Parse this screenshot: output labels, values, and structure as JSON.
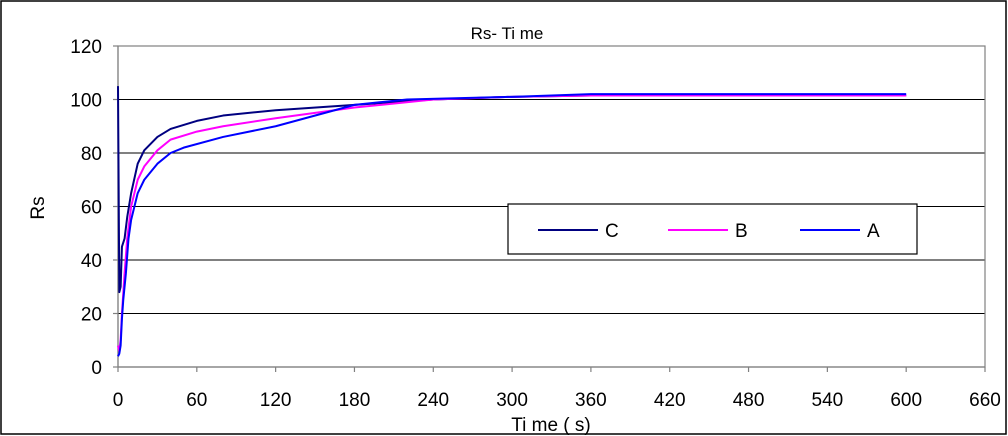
{
  "chart_data": {
    "type": "line",
    "title": "Rs- Ti me",
    "xlabel": "Ti me ( s)",
    "ylabel": "Rs",
    "xlim": [
      0,
      660
    ],
    "ylim": [
      0,
      120
    ],
    "xticks": [
      0,
      60,
      120,
      180,
      240,
      300,
      360,
      420,
      480,
      540,
      600,
      660
    ],
    "yticks": [
      0,
      20,
      40,
      60,
      80,
      100,
      120
    ],
    "grid": "horizontal",
    "legend_position": "center-right",
    "series": [
      {
        "name": "C",
        "color": "#000080",
        "x": [
          0,
          1,
          2,
          3,
          5,
          7,
          10,
          15,
          20,
          30,
          40,
          60,
          80,
          120,
          180,
          240,
          300,
          360,
          420,
          480,
          540,
          600
        ],
        "y": [
          105,
          28,
          30,
          45,
          48,
          56,
          65,
          76,
          81,
          86,
          89,
          92,
          94,
          96,
          98,
          100,
          101,
          101.5,
          101.5,
          101.5,
          101.5,
          101.5
        ]
      },
      {
        "name": "B",
        "color": "#FF00FF",
        "x": [
          0,
          1,
          2,
          3,
          5,
          7,
          10,
          15,
          20,
          30,
          40,
          60,
          80,
          120,
          180,
          240,
          300,
          360,
          420,
          480,
          540,
          600
        ],
        "y": [
          8,
          6,
          10,
          20,
          35,
          48,
          60,
          70,
          75,
          81,
          85,
          88,
          90,
          93,
          97,
          100,
          101,
          101.5,
          101.5,
          101.5,
          101.5,
          101.5
        ]
      },
      {
        "name": "A",
        "color": "#0000FF",
        "x": [
          0,
          1,
          2,
          3,
          4,
          6,
          8,
          10,
          15,
          20,
          30,
          40,
          50,
          80,
          120,
          180,
          220,
          300,
          360,
          420,
          480,
          540,
          600
        ],
        "y": [
          4,
          5,
          8,
          18,
          25,
          35,
          48,
          55,
          65,
          70,
          76,
          80,
          82,
          86,
          90,
          98,
          100,
          101,
          102,
          102,
          102,
          102,
          102
        ]
      }
    ]
  }
}
